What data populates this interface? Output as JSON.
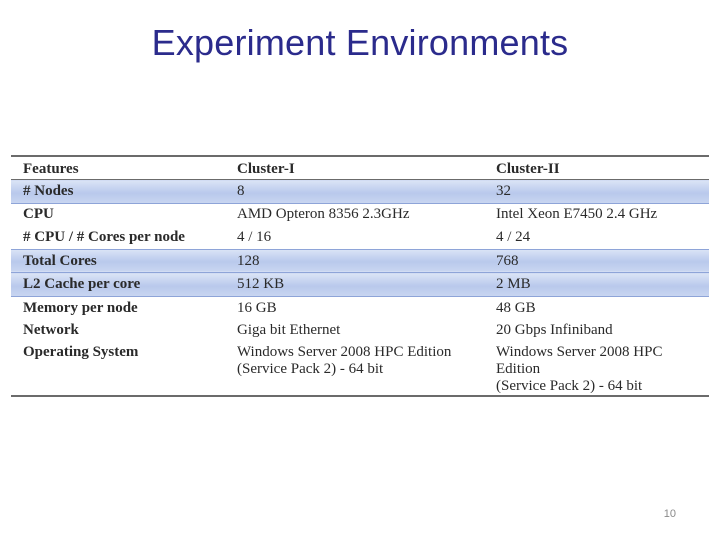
{
  "slide": {
    "title": "Experiment Environments",
    "page_number": "10"
  },
  "table": {
    "headers": [
      "Features",
      "Cluster-I",
      "Cluster-II"
    ],
    "rows": [
      {
        "feature": "# Nodes",
        "c1": "8",
        "c2": "32",
        "highlight": true
      },
      {
        "feature": "CPU",
        "c1": "AMD Opteron 8356 2.3GHz",
        "c2": "Intel Xeon E7450 2.4 GHz",
        "highlight": false
      },
      {
        "feature": "# CPU / # Cores per node",
        "c1": "4 / 16",
        "c2": "4 / 24",
        "highlight": false
      },
      {
        "feature": "Total Cores",
        "c1": "128",
        "c2": "768",
        "highlight": true
      },
      {
        "feature": "L2 Cache per core",
        "c1": "512 KB",
        "c2": "2 MB",
        "highlight": true
      },
      {
        "feature": "Memory per node",
        "c1": "16 GB",
        "c2": "48 GB",
        "highlight": false
      },
      {
        "feature": "Network",
        "c1": "Giga bit Ethernet",
        "c2": "20 Gbps Infiniband",
        "highlight": false
      },
      {
        "feature": "Operating System",
        "c1_line1": "Windows Server 2008 HPC Edition",
        "c1_line2": "(Service Pack 2) - 64 bit",
        "c2_line1": "Windows Server 2008 HPC Edition",
        "c2_line2": "(Service Pack 2) - 64 bit",
        "highlight": false
      }
    ]
  }
}
